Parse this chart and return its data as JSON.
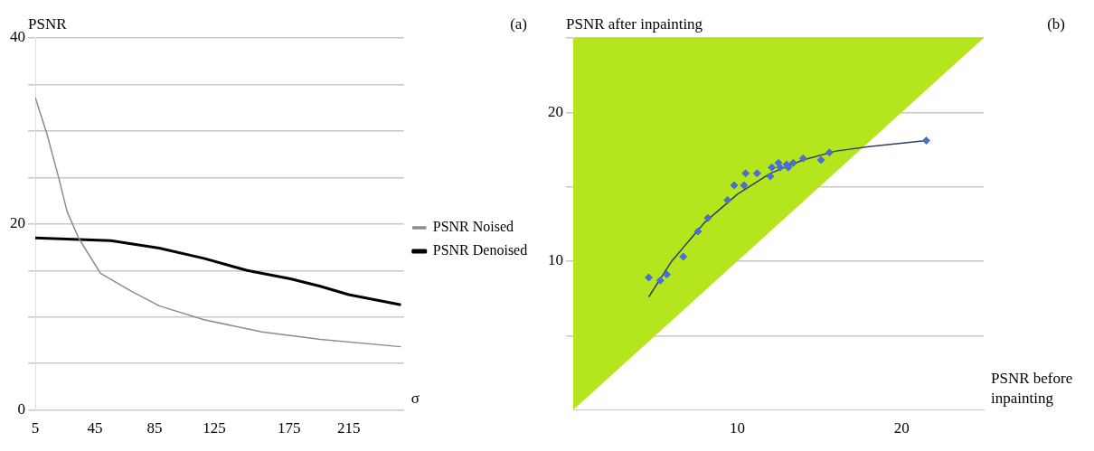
{
  "chart_data": [
    {
      "type": "line",
      "ylabel": "PSNR",
      "xlabel": "σ",
      "annotations": [
        "(a)"
      ],
      "xlim": [
        5,
        252
      ],
      "xticks": [
        5,
        45,
        85,
        125,
        175,
        215
      ],
      "ylim": [
        0,
        40
      ],
      "yticks": [
        0,
        {
          "value": 5,
          "label": null
        },
        {
          "value": 10,
          "label": null
        },
        {
          "value": 15,
          "label": null
        },
        20,
        {
          "value": 25,
          "label": null
        },
        {
          "value": 30,
          "label": null
        },
        {
          "value": 35,
          "label": null
        },
        40
      ],
      "grid": "y",
      "legend": "right",
      "marker": "none",
      "series": [
        {
          "name": "PSNR Noised",
          "color": "#8c8c8c",
          "x": [
            5,
            12.6,
            20.5,
            26.4,
            34,
            48.7,
            69,
            88,
            118,
            157,
            196,
            250
          ],
          "values": [
            33.6,
            29.8,
            25.1,
            21.3,
            18.5,
            14.7,
            12.8,
            11.2,
            9.7,
            8.4,
            7.6,
            6.8
          ]
        },
        {
          "name": "PSNR Denoised",
          "color": "#000000",
          "x": [
            5,
            55.6,
            88,
            118,
            147,
            176,
            196,
            215,
            250
          ],
          "values": [
            18.5,
            18.2,
            17.4,
            16.3,
            15.0,
            14.1,
            13.3,
            12.4,
            11.3
          ]
        }
      ]
    },
    {
      "type": "scatter",
      "ylabel": "PSNR after inpainting",
      "xlabel": "PSNR before inpainting",
      "annotations": [
        "(b)"
      ],
      "xlim": [
        0,
        25
      ],
      "xticks": [
        10,
        20
      ],
      "ylim": [
        0,
        25
      ],
      "yticks": [
        {
          "value": 5,
          "label": null
        },
        10,
        {
          "value": 15,
          "label": null
        },
        20,
        {
          "value": 25,
          "label": null
        }
      ],
      "grid": "y",
      "legend": false,
      "marker": "diamond",
      "series": [
        {
          "type": "area",
          "color": "#b5e61d",
          "marker": "none",
          "x": [
            0,
            25
          ],
          "values": [
            0,
            25
          ]
        },
        {
          "color": "#4a6fd0",
          "x": [
            4.6,
            5.3,
            5.7,
            6.7,
            7.6,
            8.2,
            9.4,
            9.8,
            10.4,
            10.5,
            11.2,
            12.0,
            12.1,
            12.5,
            12.6,
            13.0,
            13.1,
            13.4,
            14.0,
            15.1,
            15.6,
            21.5
          ],
          "values": [
            8.9,
            8.7,
            9.1,
            10.3,
            12.0,
            12.9,
            14.1,
            15.1,
            15.1,
            15.9,
            15.9,
            15.7,
            16.3,
            16.6,
            16.3,
            16.5,
            16.3,
            16.6,
            16.9,
            16.8,
            17.3,
            18.1
          ]
        },
        {
          "type": "line",
          "color": "#2f3f5f",
          "marker": "none",
          "x": [
            4.6,
            6,
            8,
            10,
            12,
            14,
            16,
            18,
            21.5
          ],
          "values": [
            7.6,
            10.0,
            12.6,
            14.5,
            15.9,
            16.8,
            17.4,
            17.7,
            18.1
          ]
        }
      ]
    }
  ]
}
